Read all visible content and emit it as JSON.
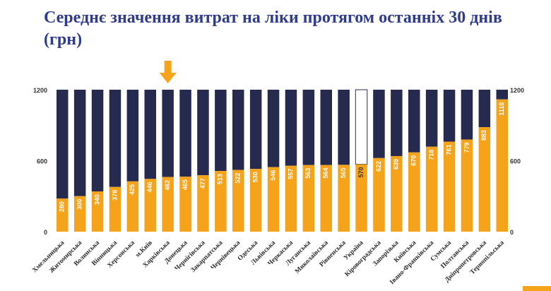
{
  "title": "Середнє значення витрат на ліки протягом останніх 30 днів (грн)",
  "colors": {
    "title": "#2f3c8e",
    "bar_value": "#f5a31a",
    "bar_remainder": "#262a4f",
    "highlight_value": "#ffffff",
    "highlight_outline": "#262a4f",
    "arrow": "#f5a31a",
    "axis_text": "#333333"
  },
  "icons": {
    "marker": "down-arrow-icon"
  },
  "chart_data": {
    "type": "bar",
    "stacked_to_max": true,
    "ylim": [
      0,
      1200
    ],
    "y_ticks": [
      0,
      600,
      1200
    ],
    "secondary_y_ticks": [
      0,
      600,
      1200
    ],
    "grid": false,
    "legend": "none",
    "title": "Середнє значення витрат на ліки протягом останніх 30 днів (грн)",
    "categories": [
      "Хмельницька",
      "Житомирська",
      "Волинська",
      "Вінницька",
      "Херсонська",
      "м.Київ",
      "Харківська",
      "Донецька",
      "Чернігівська",
      "Закарпатська",
      "Чернівецька",
      "Одеська",
      "Львівська",
      "Черкаська",
      "Луганська",
      "Миколаївська",
      "Рівненська",
      "Україна",
      "Кіровоградська",
      "Запорізька",
      "Київська",
      "Івано-Франківська",
      "Сумська",
      "Полтавська",
      "Дніпропетровська",
      "Тернопільська"
    ],
    "values": [
      280,
      300,
      340,
      378,
      425,
      446,
      462,
      465,
      477,
      513,
      522,
      530,
      546,
      557,
      563,
      564,
      565,
      570,
      622,
      639,
      670,
      718,
      761,
      779,
      883,
      1118
    ],
    "highlight_category": "Україна",
    "arrow_category": "Харківська"
  }
}
